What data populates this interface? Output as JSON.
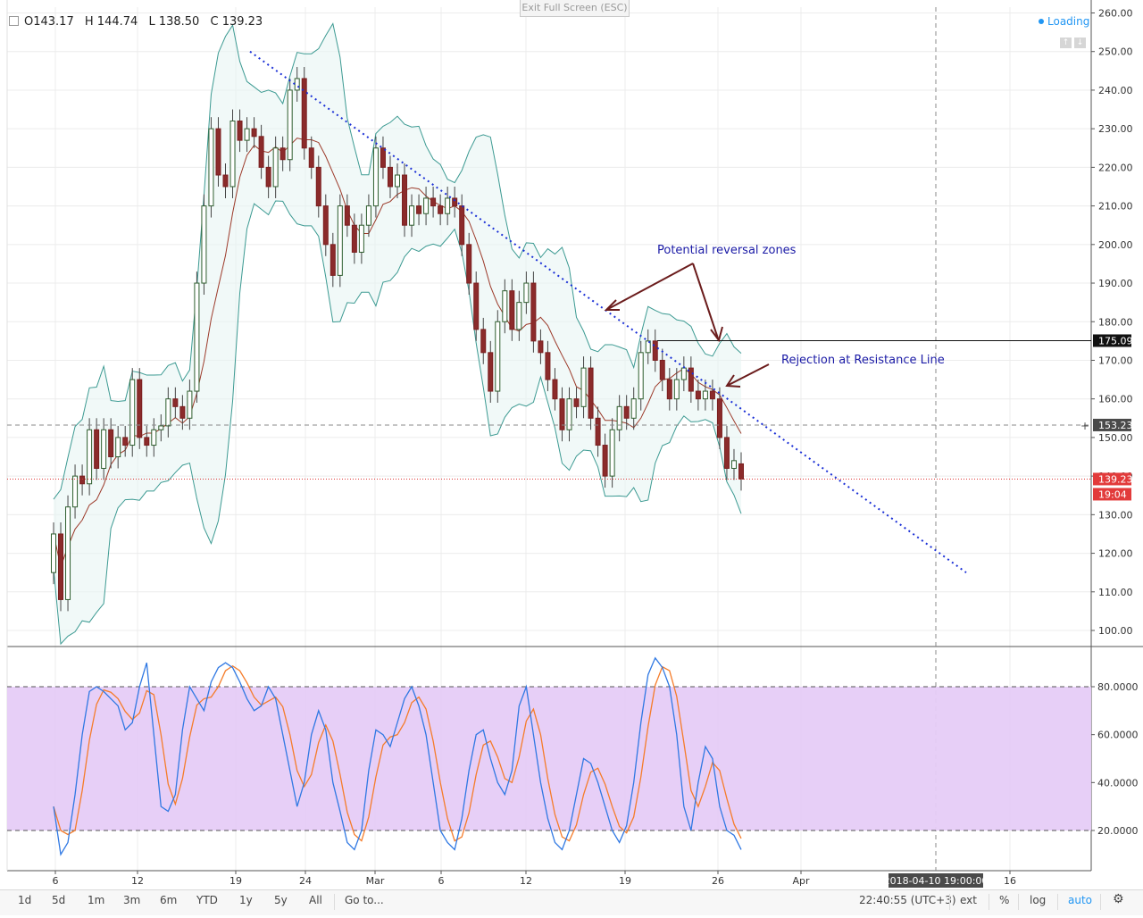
{
  "header": {
    "open_label": "O",
    "open": "143.17",
    "high_label": "H",
    "high": "144.74",
    "low_label": "L",
    "low": "138.50",
    "close_label": "C",
    "close": "139.23",
    "exit_fullscreen": "Exit Full Screen (ESC)",
    "loading": "Loading"
  },
  "toolbar": {
    "ranges": [
      "1d",
      "5d",
      "1m",
      "3m",
      "6m",
      "YTD",
      "1y",
      "5y",
      "All"
    ],
    "goto": "Go to...",
    "time": "22:40:55 (UTC+3)",
    "ext": "ext",
    "percent": "%",
    "log": "log",
    "auto": "auto"
  },
  "chart_data": {
    "type": "candlestick",
    "title": "",
    "price_axis": {
      "ticks": [
        "260.00",
        "250.00",
        "240.00",
        "230.00",
        "220.00",
        "210.00",
        "200.00",
        "190.00",
        "180.00",
        "170.00",
        "160.00",
        "150.00",
        "140.00",
        "130.00",
        "120.00",
        "110.00",
        "100.00"
      ],
      "ylim": [
        100,
        260
      ]
    },
    "time_axis": {
      "labels": [
        "6",
        "12",
        "19",
        "24",
        "Mar",
        "6",
        "12",
        "19",
        "26",
        "Apr",
        "16"
      ],
      "crosshair_label": "2018-04-10 19:00:00"
    },
    "price_labels": {
      "resistance": "175.09",
      "crosshair": "153.23",
      "last": "139.23",
      "countdown": "19:04"
    },
    "annotations": {
      "potential_reversal": "Potential reversal zones",
      "rejection": "Rejection at Resistance Line"
    },
    "candles": [
      {
        "x": 0,
        "o": 115.0,
        "c": 125.0
      },
      {
        "x": 1,
        "o": 125.0,
        "c": 108.0
      },
      {
        "x": 2,
        "o": 108.0,
        "c": 132.0
      },
      {
        "x": 3,
        "o": 132.0,
        "c": 140.0
      },
      {
        "x": 4,
        "o": 140.0,
        "c": 138.0
      },
      {
        "x": 5,
        "o": 138.0,
        "c": 152.0
      },
      {
        "x": 6,
        "o": 152.0,
        "c": 142.0
      },
      {
        "x": 7,
        "o": 142.0,
        "c": 152.0
      },
      {
        "x": 8,
        "o": 152.0,
        "c": 145.0
      },
      {
        "x": 9,
        "o": 145.0,
        "c": 150.0
      },
      {
        "x": 10,
        "o": 150.0,
        "c": 148.0
      },
      {
        "x": 11,
        "o": 148.0,
        "c": 165.0
      },
      {
        "x": 12,
        "o": 165.0,
        "c": 150.0
      },
      {
        "x": 13,
        "o": 150.0,
        "c": 148.0
      },
      {
        "x": 14,
        "o": 148.0,
        "c": 152.0
      },
      {
        "x": 15,
        "o": 152.0,
        "c": 153.0
      },
      {
        "x": 16,
        "o": 153.0,
        "c": 160.0
      },
      {
        "x": 17,
        "o": 160.0,
        "c": 158.0
      },
      {
        "x": 18,
        "o": 158.0,
        "c": 155.0
      },
      {
        "x": 19,
        "o": 155.0,
        "c": 162.0
      },
      {
        "x": 20,
        "o": 162.0,
        "c": 190.0
      },
      {
        "x": 21,
        "o": 190.0,
        "c": 210.0
      },
      {
        "x": 22,
        "o": 210.0,
        "c": 230.0
      },
      {
        "x": 23,
        "o": 230.0,
        "c": 218.0
      },
      {
        "x": 24,
        "o": 218.0,
        "c": 215.0
      },
      {
        "x": 25,
        "o": 215.0,
        "c": 232.0
      },
      {
        "x": 26,
        "o": 232.0,
        "c": 227.0
      },
      {
        "x": 27,
        "o": 227.0,
        "c": 230.0
      },
      {
        "x": 28,
        "o": 230.0,
        "c": 228.0
      },
      {
        "x": 29,
        "o": 228.0,
        "c": 220.0
      },
      {
        "x": 30,
        "o": 220.0,
        "c": 215.0
      },
      {
        "x": 31,
        "o": 215.0,
        "c": 225.0
      },
      {
        "x": 32,
        "o": 225.0,
        "c": 222.0
      },
      {
        "x": 33,
        "o": 222.0,
        "c": 240.0
      },
      {
        "x": 34,
        "o": 240.0,
        "c": 243.0
      },
      {
        "x": 35,
        "o": 243.0,
        "c": 225.0
      },
      {
        "x": 36,
        "o": 225.0,
        "c": 220.0
      },
      {
        "x": 37,
        "o": 220.0,
        "c": 210.0
      },
      {
        "x": 38,
        "o": 210.0,
        "c": 200.0
      },
      {
        "x": 39,
        "o": 200.0,
        "c": 192.0
      },
      {
        "x": 40,
        "o": 192.0,
        "c": 210.0
      },
      {
        "x": 41,
        "o": 210.0,
        "c": 205.0
      },
      {
        "x": 42,
        "o": 205.0,
        "c": 198.0
      },
      {
        "x": 43,
        "o": 198.0,
        "c": 205.0
      },
      {
        "x": 44,
        "o": 205.0,
        "c": 210.0
      },
      {
        "x": 45,
        "o": 210.0,
        "c": 225.0
      },
      {
        "x": 46,
        "o": 225.0,
        "c": 220.0
      },
      {
        "x": 47,
        "o": 220.0,
        "c": 215.0
      },
      {
        "x": 48,
        "o": 215.0,
        "c": 218.0
      },
      {
        "x": 49,
        "o": 218.0,
        "c": 205.0
      },
      {
        "x": 50,
        "o": 205.0,
        "c": 210.0
      },
      {
        "x": 51,
        "o": 210.0,
        "c": 208.0
      },
      {
        "x": 52,
        "o": 208.0,
        "c": 212.0
      },
      {
        "x": 53,
        "o": 212.0,
        "c": 210.0
      },
      {
        "x": 54,
        "o": 210.0,
        "c": 208.0
      },
      {
        "x": 55,
        "o": 208.0,
        "c": 212.0
      },
      {
        "x": 56,
        "o": 212.0,
        "c": 210.0
      },
      {
        "x": 57,
        "o": 210.0,
        "c": 200.0
      },
      {
        "x": 58,
        "o": 200.0,
        "c": 190.0
      },
      {
        "x": 59,
        "o": 190.0,
        "c": 178.0
      },
      {
        "x": 60,
        "o": 178.0,
        "c": 172.0
      },
      {
        "x": 61,
        "o": 172.0,
        "c": 162.0
      },
      {
        "x": 62,
        "o": 162.0,
        "c": 180.0
      },
      {
        "x": 63,
        "o": 180.0,
        "c": 188.0
      },
      {
        "x": 64,
        "o": 188.0,
        "c": 178.0
      },
      {
        "x": 65,
        "o": 178.0,
        "c": 185.0
      },
      {
        "x": 66,
        "o": 185.0,
        "c": 190.0
      },
      {
        "x": 67,
        "o": 190.0,
        "c": 175.0
      },
      {
        "x": 68,
        "o": 175.0,
        "c": 172.0
      },
      {
        "x": 69,
        "o": 172.0,
        "c": 165.0
      },
      {
        "x": 70,
        "o": 165.0,
        "c": 160.0
      },
      {
        "x": 71,
        "o": 160.0,
        "c": 152.0
      },
      {
        "x": 72,
        "o": 152.0,
        "c": 160.0
      },
      {
        "x": 73,
        "o": 160.0,
        "c": 158.0
      },
      {
        "x": 74,
        "o": 158.0,
        "c": 168.0
      },
      {
        "x": 75,
        "o": 168.0,
        "c": 155.0
      },
      {
        "x": 76,
        "o": 155.0,
        "c": 148.0
      },
      {
        "x": 77,
        "o": 148.0,
        "c": 140.0
      },
      {
        "x": 78,
        "o": 140.0,
        "c": 152.0
      },
      {
        "x": 79,
        "o": 152.0,
        "c": 158.0
      },
      {
        "x": 80,
        "o": 158.0,
        "c": 155.0
      },
      {
        "x": 81,
        "o": 155.0,
        "c": 160.0
      },
      {
        "x": 82,
        "o": 160.0,
        "c": 172.0
      },
      {
        "x": 83,
        "o": 172.0,
        "c": 175.0
      },
      {
        "x": 84,
        "o": 175.0,
        "c": 170.0
      },
      {
        "x": 85,
        "o": 170.0,
        "c": 165.0
      },
      {
        "x": 86,
        "o": 165.0,
        "c": 160.0
      },
      {
        "x": 87,
        "o": 160.0,
        "c": 165.0
      },
      {
        "x": 88,
        "o": 165.0,
        "c": 168.0
      },
      {
        "x": 89,
        "o": 168.0,
        "c": 162.0
      },
      {
        "x": 90,
        "o": 162.0,
        "c": 160.0
      },
      {
        "x": 91,
        "o": 160.0,
        "c": 162.0
      },
      {
        "x": 92,
        "o": 162.0,
        "c": 160.0
      },
      {
        "x": 93,
        "o": 160.0,
        "c": 150.0
      },
      {
        "x": 94,
        "o": 150.0,
        "c": 142.0
      },
      {
        "x": 95,
        "o": 142.0,
        "c": 144.0
      },
      {
        "x": 96,
        "o": 143.17,
        "c": 139.23
      }
    ],
    "stochastic_axis": {
      "ticks": [
        "80.0000",
        "60.0000",
        "40.0000",
        "20.0000"
      ],
      "band": [
        20,
        80
      ],
      "ylim": [
        5,
        95
      ]
    },
    "stoch_k": [
      30,
      10,
      15,
      35,
      60,
      78,
      80,
      78,
      75,
      72,
      62,
      65,
      80,
      90,
      60,
      30,
      28,
      35,
      62,
      80,
      75,
      70,
      82,
      88,
      90,
      88,
      82,
      75,
      70,
      72,
      80,
      75,
      60,
      45,
      30,
      40,
      60,
      70,
      62,
      40,
      28,
      15,
      12,
      20,
      45,
      62,
      60,
      55,
      65,
      75,
      80,
      72,
      60,
      40,
      20,
      15,
      12,
      25,
      45,
      60,
      62,
      50,
      40,
      35,
      45,
      72,
      80,
      60,
      40,
      25,
      15,
      12,
      20,
      35,
      50,
      48,
      40,
      30,
      20,
      15,
      22,
      40,
      65,
      85,
      92,
      88,
      80,
      60,
      30,
      20,
      40,
      55,
      50,
      30,
      20,
      18,
      12
    ]
  }
}
